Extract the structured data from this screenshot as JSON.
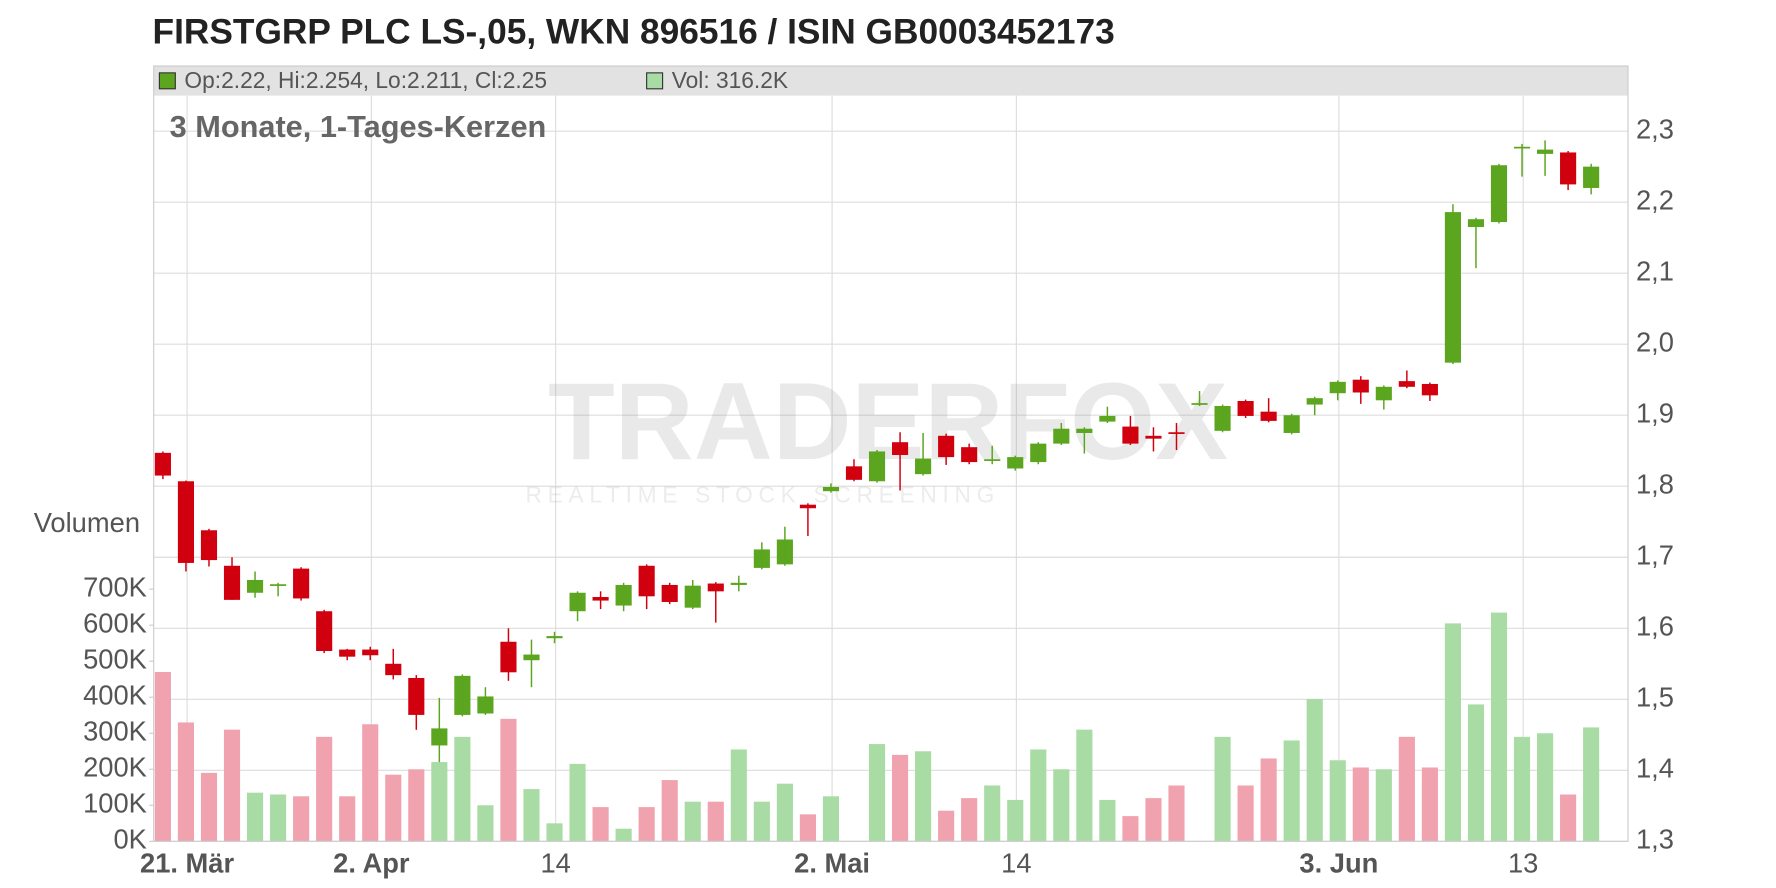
{
  "chart_data": {
    "type": "candlestick",
    "title": "FIRSTGRP PLC LS-,05, WKN 896516 / ISIN GB0003452173",
    "subtitle": "3 Monate, 1-Tages-Kerzen",
    "legend": [
      "Op:2.22, Hi:2.254, Lo:2.211, Cl:2.25",
      "Vol: 316.2K"
    ],
    "volume_axis_label": "Volumen",
    "watermark": [
      "TRADERFOX",
      "REALTIME STOCK SCREENING"
    ],
    "categories": [
      null,
      "21. Mär",
      null,
      null,
      null,
      null,
      null,
      null,
      null,
      "2. Apr",
      null,
      null,
      null,
      null,
      null,
      null,
      null,
      "14",
      null,
      null,
      null,
      null,
      null,
      null,
      null,
      null,
      null,
      null,
      null,
      "2. Mai",
      null,
      null,
      null,
      null,
      null,
      null,
      null,
      "14",
      null,
      null,
      null,
      null,
      null,
      null,
      null,
      null,
      null,
      null,
      null,
      null,
      null,
      "3. Jun",
      null,
      null,
      null,
      null,
      null,
      null,
      null,
      "13",
      null,
      null,
      null
    ],
    "open": [
      1.847,
      1.807,
      1.738,
      1.688,
      1.65,
      1.66,
      1.684,
      1.624,
      1.57,
      1.57,
      1.55,
      1.53,
      1.435,
      1.478,
      1.48,
      1.581,
      1.555,
      1.586,
      1.624,
      1.644,
      1.632,
      1.688,
      1.661,
      1.629,
      1.663,
      1.661,
      1.685,
      1.69,
      1.774,
      1.793,
      1.828,
      1.807,
      1.862,
      1.817,
      1.871,
      1.855,
      1.836,
      1.825,
      1.834,
      1.86,
      1.875,
      1.891,
      1.884,
      1.871,
      1.876,
      1.915,
      1.878,
      1.92,
      1.905,
      1.875,
      1.915,
      1.931,
      1.95,
      1.921,
      1.948,
      1.944,
      1.974,
      2.165,
      2.172,
      2.276,
      2.268,
      2.27,
      2.22
    ],
    "high": [
      1.849,
      1.808,
      1.74,
      1.7,
      1.68,
      1.664,
      1.686,
      1.626,
      1.571,
      1.574,
      1.571,
      1.534,
      1.502,
      1.535,
      1.517,
      1.6,
      1.584,
      1.595,
      1.652,
      1.652,
      1.664,
      1.69,
      1.664,
      1.668,
      1.665,
      1.674,
      1.721,
      1.743,
      1.776,
      1.804,
      1.838,
      1.851,
      1.876,
      1.875,
      1.874,
      1.86,
      1.857,
      1.843,
      1.862,
      1.889,
      1.883,
      1.912,
      1.899,
      1.883,
      1.889,
      1.934,
      1.915,
      1.922,
      1.924,
      1.902,
      1.926,
      1.949,
      1.955,
      1.942,
      1.963,
      1.946,
      2.197,
      2.178,
      2.254,
      2.282,
      2.287,
      2.272,
      2.254
    ],
    "low": [
      1.81,
      1.68,
      1.687,
      1.64,
      1.643,
      1.645,
      1.639,
      1.565,
      1.555,
      1.555,
      1.528,
      1.457,
      1.379,
      1.476,
      1.478,
      1.526,
      1.517,
      1.579,
      1.61,
      1.627,
      1.624,
      1.627,
      1.634,
      1.627,
      1.608,
      1.652,
      1.683,
      1.688,
      1.73,
      1.791,
      1.807,
      1.805,
      1.794,
      1.815,
      1.83,
      1.831,
      1.831,
      1.822,
      1.831,
      1.858,
      1.846,
      1.889,
      1.858,
      1.849,
      1.851,
      1.913,
      1.876,
      1.896,
      1.89,
      1.873,
      1.9,
      1.921,
      1.916,
      1.908,
      1.938,
      1.92,
      1.972,
      2.107,
      2.17,
      2.236,
      2.237,
      2.217,
      2.211
    ],
    "close": [
      1.815,
      1.692,
      1.696,
      1.64,
      1.668,
      1.662,
      1.642,
      1.568,
      1.56,
      1.562,
      1.534,
      1.478,
      1.459,
      1.533,
      1.504,
      1.538,
      1.563,
      1.589,
      1.65,
      1.639,
      1.661,
      1.645,
      1.637,
      1.66,
      1.652,
      1.664,
      1.711,
      1.725,
      1.769,
      1.799,
      1.809,
      1.849,
      1.844,
      1.839,
      1.841,
      1.834,
      1.838,
      1.841,
      1.86,
      1.881,
      1.881,
      1.899,
      1.86,
      1.867,
      1.874,
      1.917,
      1.913,
      1.899,
      1.892,
      1.9,
      1.924,
      1.947,
      1.932,
      1.94,
      1.94,
      1.928,
      2.186,
      2.176,
      2.252,
      2.278,
      2.274,
      2.225,
      2.25
    ],
    "volume": [
      470000,
      330000,
      190000,
      310000,
      135000,
      130000,
      125000,
      290000,
      125000,
      325000,
      185000,
      200000,
      220000,
      290000,
      100000,
      340000,
      145000,
      50000,
      215000,
      95000,
      35000,
      95000,
      170000,
      110000,
      110000,
      255000,
      110000,
      160000,
      75000,
      125000,
      null,
      270000,
      240000,
      250000,
      85000,
      120000,
      155000,
      115000,
      255000,
      200000,
      310000,
      115000,
      70000,
      120000,
      155000,
      null,
      290000,
      155000,
      230000,
      280000,
      395000,
      225000,
      205000,
      200000,
      290000,
      205000,
      605000,
      380000,
      635000,
      290000,
      300000,
      130000,
      316200
    ],
    "up_color": "#5ba51f",
    "down_color": "#d1000f",
    "volume_up_color": "#a9dba4",
    "volume_down_color": "#f0a3ae",
    "ylim": [
      1.3,
      2.35
    ],
    "yticks": [
      {
        "value": 1.3,
        "label": "1,3"
      },
      {
        "value": 1.4,
        "label": "1,4"
      },
      {
        "value": 1.5,
        "label": "1,5"
      },
      {
        "value": 1.6,
        "label": "1,6"
      },
      {
        "value": 1.7,
        "label": "1,7"
      },
      {
        "value": 1.8,
        "label": "1,8"
      },
      {
        "value": 1.9,
        "label": "1,9"
      },
      {
        "value": 2.0,
        "label": "2,0"
      },
      {
        "value": 2.1,
        "label": "2,1"
      },
      {
        "value": 2.2,
        "label": "2,2"
      },
      {
        "value": 2.3,
        "label": "2,3"
      }
    ],
    "y2lim": [
      0,
      2070000
    ],
    "y2ticks": [
      {
        "value": 0,
        "label": "0K"
      },
      {
        "value": 100000,
        "label": "100K"
      },
      {
        "value": 200000,
        "label": "200K"
      },
      {
        "value": 300000,
        "label": "300K"
      },
      {
        "value": 400000,
        "label": "400K"
      },
      {
        "value": 500000,
        "label": "500K"
      },
      {
        "value": 600000,
        "label": "600K"
      },
      {
        "value": 700000,
        "label": "700K"
      }
    ],
    "grid": true
  }
}
